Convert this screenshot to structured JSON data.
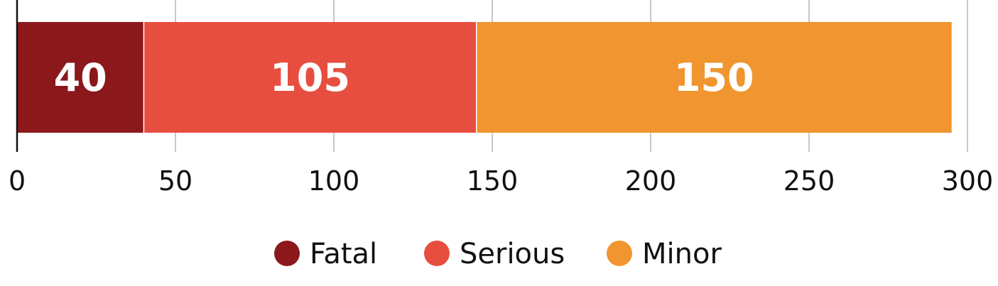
{
  "chart_data": {
    "type": "bar",
    "orientation": "horizontal",
    "stacked": true,
    "categories": [
      ""
    ],
    "series": [
      {
        "name": "Fatal",
        "values": [
          40
        ],
        "color": "#8b181b"
      },
      {
        "name": "Serious",
        "values": [
          105
        ],
        "color": "#e84e40"
      },
      {
        "name": "Minor",
        "values": [
          150
        ],
        "color": "#f0952f"
      }
    ],
    "xlim": [
      0,
      300
    ],
    "x_ticks": [
      0,
      50,
      100,
      150,
      200,
      250,
      300
    ],
    "grid": true,
    "legend_position": "bottom",
    "show_data_labels": true,
    "title": "",
    "xlabel": "",
    "ylabel": ""
  },
  "colors": {
    "grid": "#c8c8c8",
    "axis": "#111111",
    "data_label": "#ffffff"
  }
}
